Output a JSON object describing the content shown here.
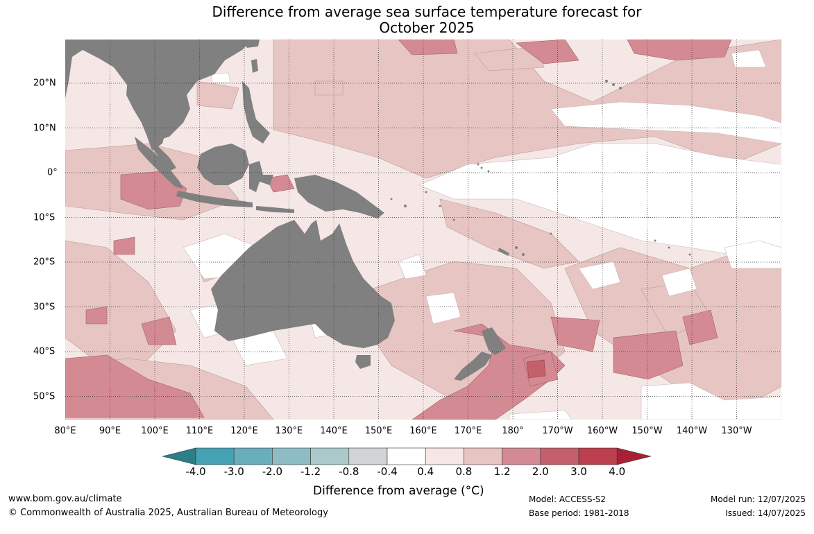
{
  "title": {
    "line1": "Difference from average sea surface temperature forecast for",
    "line2": "October 2025"
  },
  "map": {
    "latitudes": [
      "20°N",
      "10°N",
      "0°",
      "10°S",
      "20°S",
      "30°S",
      "40°S",
      "50°S"
    ],
    "longitudes": [
      "80°E",
      "90°E",
      "100°E",
      "110°E",
      "120°E",
      "130°E",
      "140°E",
      "150°E",
      "160°E",
      "170°E",
      "180°",
      "170°W",
      "160°W",
      "150°W",
      "140°W",
      "130°W"
    ],
    "land_color": "#808080",
    "gridlines": "dotted"
  },
  "colorbar": {
    "ticks": [
      "-4.0",
      "-3.0",
      "-2.0",
      "-1.2",
      "-0.8",
      "-0.4",
      "0.4",
      "0.8",
      "1.2",
      "2.0",
      "3.0",
      "4.0"
    ],
    "colors": [
      "#2d7f87",
      "#46a2b2",
      "#6aaebd",
      "#8ebcc4",
      "#abc8ca",
      "#d1d3d4",
      "#ffffff",
      "#f4e7e6",
      "#e7c5c2",
      "#d48a92",
      "#c4606c",
      "#bb3f4d",
      "#a82034"
    ],
    "label": "Difference from average (°C)"
  },
  "footer": {
    "website": "www.bom.gov.au/climate",
    "copyright": "© Commonwealth of Australia 2025, Australian Bureau of Meteorology",
    "model": "Model: ACCESS-S2",
    "base_period": "Base period: 1981-2018",
    "model_run": "Model run: 12/07/2025",
    "issued": "Issued: 14/07/2025"
  }
}
